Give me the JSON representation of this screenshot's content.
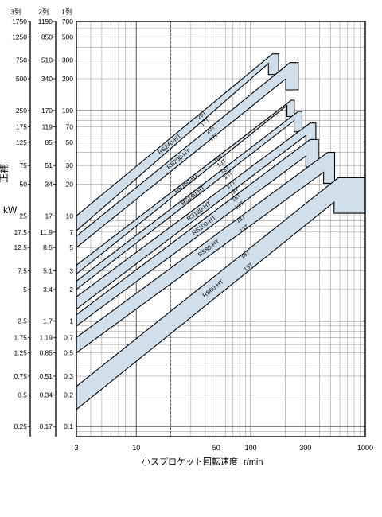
{
  "chart_data": {
    "type": "line",
    "xlabel": "小スプロケット回転速度",
    "xunit": "r/min",
    "ylabel_glyph": "kW",
    "ylabel_vertical": "正補",
    "x_scale": "log",
    "y_scale": "log",
    "xlim": [
      3,
      1000
    ],
    "ylim": [
      0.08,
      700
    ],
    "grid": true,
    "x_ticks": [
      3,
      10,
      50,
      100,
      300,
      1000
    ],
    "column_headers": [
      "3列",
      "2列",
      "1列"
    ],
    "y_tick_rows": [
      {
        "c3": "1750",
        "c2": "1190",
        "c1": "700"
      },
      {
        "c3": "1250",
        "c2": "850",
        "c1": "500"
      },
      {
        "c3": "750",
        "c2": "510",
        "c1": "300"
      },
      {
        "c3": "500",
        "c2": "340",
        "c1": "200"
      },
      {
        "c3": "250",
        "c2": "170",
        "c1": "100"
      },
      {
        "c3": "175",
        "c2": "119",
        "c1": "70"
      },
      {
        "c3": "125",
        "c2": "85",
        "c1": "50"
      },
      {
        "c3": "75",
        "c2": "51",
        "c1": "30"
      },
      {
        "c3": "50",
        "c2": "34",
        "c1": "20"
      },
      {
        "c3": "25",
        "c2": "17",
        "c1": "10"
      },
      {
        "c3": "17.5",
        "c2": "11.9",
        "c1": "7"
      },
      {
        "c3": "12.5",
        "c2": "8.5",
        "c1": "5"
      },
      {
        "c3": "7.5",
        "c2": "5.1",
        "c1": "3"
      },
      {
        "c3": "5",
        "c2": "3.4",
        "c1": "2"
      },
      {
        "c3": "2.5",
        "c2": "1.7",
        "c1": "1"
      },
      {
        "c3": "1.75",
        "c2": "1.19",
        "c1": "0.7"
      },
      {
        "c3": "1.25",
        "c2": "0.85",
        "c1": "0.5"
      },
      {
        "c3": "0.75",
        "c2": "0.51",
        "c1": "0.3"
      },
      {
        "c3": "0.5",
        "c2": "0.34",
        "c1": "0.2"
      },
      {
        "c3": "0.25",
        "c2": "0.17",
        "c1": "0.1"
      }
    ],
    "series": [
      {
        "name": "RS240-HT",
        "t_low": "17T",
        "t_high": "20T",
        "y_low_at_3": 7.2,
        "y_high_at_3": 10,
        "x_peak": 155,
        "y_low_peak": 280,
        "y_high_peak": 345,
        "x_end": 175
      },
      {
        "name": "RS200-HT",
        "t_low": "17T",
        "t_high": "20T",
        "y_low_at_3": 5.0,
        "y_high_at_3": 6.4,
        "x_peak": 220,
        "y_low_peak": 200,
        "y_high_peak": 285,
        "x_end": 260
      },
      {
        "name": "RS160-HT",
        "t_low": "13T",
        "t_high": "16T",
        "y_low_at_3": 2.8,
        "y_high_at_3": 3.4,
        "x_peak": 225,
        "y_low_peak": 112,
        "y_high_peak": 125,
        "x_end": 240
      },
      {
        "name": "RS140-HT",
        "t_low": "13T",
        "t_high": "16T",
        "y_low_at_3": 2.0,
        "y_high_at_3": 2.4,
        "x_peak": 260,
        "y_low_peak": 80,
        "y_high_peak": 98,
        "x_end": 280
      },
      {
        "name": "RS120-HT",
        "t_low": "13T",
        "t_high": "17T",
        "y_low_at_3": 1.3,
        "y_high_at_3": 1.7,
        "x_peak": 330,
        "y_low_peak": 58,
        "y_high_peak": 76,
        "x_end": 370
      },
      {
        "name": "RS100-HT",
        "t_low": "13T",
        "t_high": "18T",
        "y_low_at_3": 0.9,
        "y_high_at_3": 1.15,
        "x_peak": 330,
        "y_low_peak": 37,
        "y_high_peak": 53,
        "x_end": 390
      },
      {
        "name": "RS80-HT",
        "t_low": "13T",
        "t_high": "18T",
        "y_low_at_3": 0.5,
        "y_high_at_3": 0.7,
        "x_peak": 470,
        "y_low_peak": 26,
        "y_high_peak": 40,
        "x_end": 540
      },
      {
        "name": "RS60-HT",
        "t_low": "13T",
        "t_high": "18T",
        "y_low_at_3": 0.145,
        "y_high_at_3": 0.24,
        "x_peak": 580,
        "y_low_peak": 13.5,
        "y_high_peak": 23,
        "x_end": 1000
      }
    ]
  },
  "colors": {
    "band_fill": "#cfdfeb",
    "line": "#000000",
    "grid_dark": "#444444",
    "grid_light": "#8a8a8a"
  }
}
